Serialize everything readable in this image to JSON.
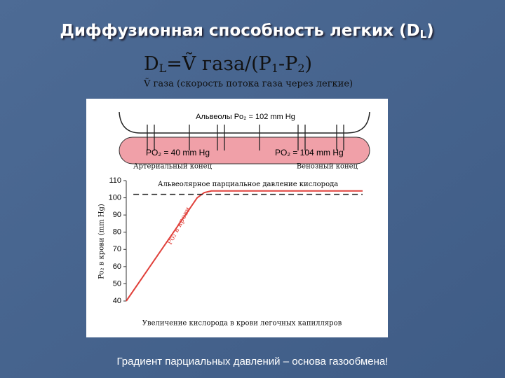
{
  "slide": {
    "title": [
      "Диффузионная способность легких (D",
      "L",
      ")"
    ],
    "formula": [
      "D",
      "L",
      "=Ṽ газа/(P",
      "1",
      "-P",
      "2",
      ")"
    ],
    "subtitle": "Ṽ газа (скорость потока газа через легкие)",
    "footer": "Градиент парциальных давлений – основа газообмена!"
  },
  "diagram": {
    "alveoli": "Альвеолы Po₂ = 102 mm Hg",
    "left_blood": "PO₂ = 40 mm Hg",
    "right_blood": "PO₂ = 104 mm Hg",
    "arterial_end": "Артериальный конец",
    "venous_end": "Венозный конец"
  },
  "chart_data": {
    "type": "line",
    "ylabel": "Po₂ в крови (mm Hg)",
    "xlabel": "Увеличение кислорода в крови легочных капилляров",
    "xlim": [
      0,
      100
    ],
    "ylim": [
      40,
      110
    ],
    "yticks": [
      40,
      50,
      60,
      70,
      80,
      90,
      100,
      110
    ],
    "series": [
      {
        "name": "Po₂ в крови",
        "color": "#e0403a",
        "dashed": false,
        "x": [
          0,
          30,
          33,
          36,
          100
        ],
        "values": [
          40,
          100,
          103,
          104,
          104
        ]
      },
      {
        "name": "Альвеолярное парциальное давление кислорода",
        "color": "#222222",
        "dashed": true,
        "x": [
          3,
          100
        ],
        "values": [
          102,
          102
        ]
      }
    ]
  }
}
